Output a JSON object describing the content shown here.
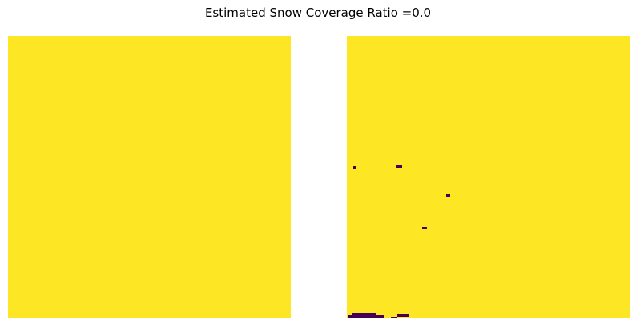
{
  "figure": {
    "title": "Estimated Snow Coverage Ratio =0.0"
  },
  "colors": {
    "mask_high": "#fde725",
    "mask_low": "#440154",
    "background": "#ffffff"
  },
  "panels": [
    {
      "name": "left-mask-image",
      "content": "uniform"
    },
    {
      "name": "right-mask-image",
      "content": "mostly uniform with small dark patches"
    }
  ]
}
